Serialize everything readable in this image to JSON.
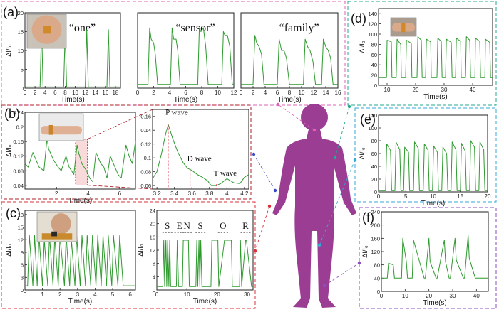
{
  "colors": {
    "trace": "#2e9a2e",
    "body": "#9b3d93",
    "frame_a": "#e060b8",
    "frame_b": "#b0222a",
    "frame_c": "#d8323a",
    "frame_d": "#25a88f",
    "frame_e": "#35a9d8",
    "frame_f": "#8a4fc0",
    "ecg_highlight": "#e05060",
    "axis": "#222222"
  },
  "panels": [
    {
      "id": "a",
      "label": "(a)",
      "icon": "neck-photo-icon"
    },
    {
      "id": "b",
      "label": "(b)",
      "icon": "wrist-photo-icon"
    },
    {
      "id": "c",
      "label": "(c)",
      "icon": "finger-photo-icon"
    },
    {
      "id": "d",
      "label": "(d)",
      "icon": "elbow-photo-icon"
    },
    {
      "id": "e",
      "label": "(e)",
      "icon": ""
    },
    {
      "id": "f",
      "label": "(f)",
      "icon": ""
    }
  ],
  "chart_data": [
    {
      "name": "a-one",
      "type": "line",
      "title": "“one”",
      "xlabel": "Time(s)",
      "ylabel": "ΔI/I₀",
      "xlim": [
        0,
        19
      ],
      "ylim": [
        0,
        20
      ],
      "xticks": [
        0,
        2,
        4,
        6,
        8,
        10,
        12,
        14,
        16,
        18
      ],
      "yticks": [
        0,
        5,
        10,
        15,
        20
      ],
      "x": [
        0,
        3.0,
        3.3,
        3.6,
        7.7,
        8.0,
        8.3,
        12.0,
        12.3,
        12.6,
        16.3,
        16.6,
        16.9,
        19
      ],
      "y": [
        0.3,
        0.3,
        16.5,
        0.3,
        0.3,
        15,
        0.3,
        0.3,
        15.5,
        0.3,
        0.3,
        15.5,
        0.3,
        0.3
      ]
    },
    {
      "name": "a-sensor",
      "type": "line",
      "title": "“sensor”",
      "xlabel": "Time(s)",
      "ylabel": "",
      "xlim": [
        0,
        12
      ],
      "ylim": [
        0,
        20
      ],
      "xticks": [
        0,
        2,
        4,
        6,
        8,
        10,
        12
      ],
      "yticks": [],
      "x": [
        0,
        1.3,
        1.5,
        1.7,
        2.0,
        2.2,
        2.5,
        4.1,
        4.3,
        4.5,
        4.8,
        5.0,
        5.3,
        7.5,
        7.7,
        7.9,
        8.2,
        8.5,
        8.8,
        10.5,
        10.7,
        10.9,
        11.2,
        11.5,
        11.8,
        12
      ],
      "y": [
        1,
        1,
        16,
        13,
        12,
        9,
        1,
        1,
        16,
        13,
        13,
        10,
        1,
        1,
        16,
        15,
        16,
        11,
        1,
        1,
        15,
        14,
        14,
        11,
        1,
        1
      ]
    },
    {
      "name": "a-family",
      "type": "line",
      "title": "“family”",
      "xlabel": "Time(s)",
      "ylabel": "",
      "xlim": [
        0,
        16
      ],
      "ylim": [
        0,
        20
      ],
      "xticks": [
        0,
        2,
        4,
        6,
        8,
        10,
        12,
        14,
        16
      ],
      "yticks": [],
      "x": [
        0,
        2.0,
        2.3,
        2.6,
        3.0,
        3.4,
        3.8,
        6.0,
        6.3,
        6.7,
        7.1,
        7.5,
        8.0,
        10.3,
        10.6,
        11.0,
        11.4,
        11.9,
        12.3,
        13.3,
        13.6,
        14.0,
        14.4,
        14.8,
        15.2,
        16
      ],
      "y": [
        1,
        1,
        14,
        12,
        11,
        9,
        1,
        1,
        13,
        10,
        10,
        8,
        1,
        1,
        13,
        11,
        10,
        7,
        1,
        1,
        13,
        11,
        10,
        8,
        1,
        1
      ]
    },
    {
      "name": "b-pulse",
      "type": "line",
      "title": "",
      "xlabel": "Time(s)",
      "ylabel": "ΔI/I₀",
      "xlim": [
        0,
        7
      ],
      "ylim": [
        0.03,
        0.24
      ],
      "xticks": [
        2,
        4,
        6
      ],
      "yticks": [
        0.04,
        0.08,
        0.12,
        0.16,
        0.2,
        0.24
      ],
      "highlight_x": [
        3.2,
        3.95
      ],
      "x": [
        0,
        0.2,
        0.5,
        0.7,
        0.9,
        1.2,
        1.4,
        1.5,
        1.8,
        2.1,
        2.3,
        2.6,
        2.8,
        3.1,
        3.3,
        3.4,
        3.6,
        3.9,
        4.1,
        4.3,
        4.5,
        4.8,
        5.0,
        5.2,
        5.4,
        5.7,
        5.9,
        6.1,
        6.4,
        6.6,
        6.8,
        7.0
      ],
      "y": [
        0.1,
        0.09,
        0.13,
        0.11,
        0.09,
        0.08,
        0.17,
        0.14,
        0.11,
        0.09,
        0.08,
        0.12,
        0.09,
        0.07,
        0.15,
        0.13,
        0.1,
        0.08,
        0.06,
        0.05,
        0.13,
        0.1,
        0.09,
        0.06,
        0.12,
        0.09,
        0.07,
        0.06,
        0.15,
        0.12,
        0.1,
        0.16
      ]
    },
    {
      "name": "b-ecg",
      "type": "line",
      "title": "",
      "xlabel": "",
      "ylabel": "",
      "xlim": [
        3.15,
        4.25
      ],
      "ylim": [
        0.055,
        0.17
      ],
      "xticks": [
        3.2,
        3.4,
        3.6,
        3.8,
        4.0,
        4.2
      ],
      "yticks": [
        0.06,
        0.08,
        0.1,
        0.12,
        0.14,
        0.16
      ],
      "x": [
        3.15,
        3.2,
        3.25,
        3.3,
        3.33,
        3.38,
        3.44,
        3.5,
        3.55,
        3.6,
        3.66,
        3.72,
        3.78,
        3.82,
        3.88,
        3.93,
        4.0,
        4.08,
        4.15,
        4.2,
        4.25
      ],
      "y": [
        0.07,
        0.08,
        0.105,
        0.135,
        0.148,
        0.128,
        0.108,
        0.093,
        0.085,
        0.082,
        0.076,
        0.072,
        0.067,
        0.06,
        0.06,
        0.063,
        0.07,
        0.064,
        0.063,
        0.072,
        0.076
      ],
      "annotations": [
        {
          "text": "P wave",
          "x": 3.33,
          "y": 0.148
        },
        {
          "text": "D wave",
          "x": 3.58,
          "y": 0.083
        },
        {
          "text": "T wave",
          "x": 3.88,
          "y": 0.062
        }
      ]
    },
    {
      "name": "c-taps",
      "type": "line",
      "title": "",
      "xlabel": "Time(s)",
      "ylabel": "ΔI/I₀",
      "xlim": [
        0,
        6.3
      ],
      "ylim": [
        0,
        19
      ],
      "xticks": [
        0,
        1,
        2,
        3,
        4,
        5,
        6
      ],
      "yticks": [
        0,
        3,
        6,
        9,
        12,
        15,
        18
      ],
      "x": [
        0,
        0.15,
        0.25,
        0.45,
        0.55,
        0.7,
        0.8,
        1.0,
        1.1,
        1.3,
        1.4,
        1.6,
        1.7,
        1.9,
        2.0,
        2.25,
        2.35,
        2.55,
        2.65,
        2.85,
        2.95,
        3.15,
        3.25,
        3.45,
        3.55,
        3.75,
        3.85,
        4.05,
        4.15,
        4.35,
        4.45,
        4.65,
        4.75,
        4.95,
        5.05,
        5.3,
        5.4,
        5.6,
        5.7,
        6.3
      ],
      "y": [
        1,
        1,
        13,
        1,
        13,
        1,
        13,
        1,
        12,
        1,
        13,
        1,
        13,
        1,
        13,
        1,
        13,
        1,
        12,
        1,
        13,
        1,
        13,
        1,
        13,
        1,
        13,
        1,
        13,
        1,
        13,
        1,
        13,
        1,
        13,
        1,
        13,
        1,
        1,
        1
      ]
    },
    {
      "name": "c-morse",
      "type": "line",
      "title": "",
      "xlabel": "Time(s)",
      "ylabel": "ΔI/I₀",
      "xlim": [
        0,
        32
      ],
      "ylim": [
        0,
        24
      ],
      "xticks": [
        0,
        10,
        20,
        30
      ],
      "yticks": [
        0,
        4,
        8,
        12,
        16,
        20,
        24
      ],
      "letters": [
        "S",
        "E",
        "N",
        "S",
        "O",
        "R"
      ],
      "letter_x": [
        3.5,
        7.5,
        10,
        14.5,
        22,
        29.5
      ],
      "x": [
        0,
        2.0,
        2.3,
        2.6,
        3.0,
        3.3,
        3.6,
        4.0,
        4.3,
        4.6,
        6.5,
        6.8,
        7.2,
        8.5,
        8.8,
        10.5,
        10.8,
        11.2,
        13.0,
        13.3,
        13.6,
        14.0,
        14.3,
        14.6,
        15.0,
        15.3,
        15.6,
        18.0,
        18.3,
        20.3,
        20.6,
        22.5,
        22.8,
        24.8,
        25.1,
        27.5,
        27.8,
        28.2,
        29.5,
        29.8,
        31.5,
        31.8,
        32
      ],
      "y": [
        1,
        1,
        15,
        1,
        15,
        1,
        15,
        1,
        15,
        1,
        1,
        15,
        1,
        1,
        15,
        15,
        1,
        1,
        1,
        15,
        1,
        15,
        1,
        15,
        1,
        1,
        1,
        1,
        15,
        15,
        1,
        15,
        15,
        15,
        1,
        1,
        15,
        1,
        15,
        15,
        1,
        1,
        1
      ]
    },
    {
      "name": "d-elbow",
      "type": "line",
      "title": "",
      "xlabel": "Time(s)",
      "ylabel": "ΔI/I₀",
      "xlim": [
        7,
        47
      ],
      "ylim": [
        0,
        150
      ],
      "xticks": [
        10,
        20,
        30,
        40
      ],
      "yticks": [
        0,
        20,
        40,
        60,
        80,
        100,
        120,
        140
      ],
      "x": [
        7,
        9.8,
        10.0,
        11.5,
        11.7,
        13.2,
        13.5,
        14.8,
        15.0,
        16.5,
        16.8,
        18.5,
        18.7,
        20.5,
        20.8,
        22.0,
        22.3,
        23.5,
        23.8,
        25.3,
        25.5,
        27.5,
        27.8,
        29.0,
        29.3,
        30.5,
        30.8,
        32.5,
        32.8,
        34.0,
        34.3,
        35.8,
        36.0,
        37.5,
        37.8,
        39.0,
        39.3,
        40.8,
        41.0,
        42.5,
        42.8,
        44.3,
        44.5,
        46.0,
        46.3,
        47
      ],
      "y": [
        15,
        15,
        88,
        85,
        15,
        15,
        90,
        80,
        15,
        15,
        88,
        82,
        15,
        15,
        95,
        88,
        15,
        15,
        90,
        85,
        15,
        15,
        92,
        86,
        15,
        15,
        90,
        84,
        15,
        15,
        92,
        86,
        15,
        15,
        95,
        88,
        15,
        15,
        92,
        86,
        15,
        15,
        90,
        84,
        15,
        15
      ]
    },
    {
      "name": "e-knee",
      "type": "line",
      "title": "",
      "xlabel": "Time(s)",
      "ylabel": "ΔI/I₀",
      "xlim": [
        0,
        20
      ],
      "ylim": [
        0,
        120
      ],
      "xticks": [
        0,
        5,
        10,
        15,
        20
      ],
      "yticks": [
        0,
        20,
        40,
        60,
        80,
        100,
        120
      ],
      "x": [
        0,
        1.3,
        1.5,
        2.2,
        2.4,
        3.0,
        3.2,
        3.9,
        4.1,
        4.6,
        4.8,
        5.5,
        5.7,
        6.4,
        6.6,
        7.3,
        7.5,
        8.2,
        8.4,
        9.1,
        9.3,
        9.9,
        10.1,
        10.8,
        11.0,
        11.6,
        11.8,
        12.5,
        12.7,
        13.3,
        13.5,
        14.2,
        14.4,
        15.0,
        15.2,
        15.9,
        16.1,
        16.7,
        16.9,
        17.6,
        17.8,
        18.4,
        18.6,
        19.3,
        19.5,
        20
      ],
      "y": [
        2,
        2,
        75,
        65,
        2,
        2,
        78,
        66,
        2,
        2,
        70,
        62,
        2,
        2,
        78,
        68,
        2,
        2,
        75,
        65,
        2,
        2,
        72,
        62,
        2,
        2,
        70,
        60,
        2,
        2,
        78,
        66,
        2,
        2,
        76,
        64,
        2,
        2,
        80,
        70,
        2,
        2,
        78,
        66,
        2,
        2
      ]
    },
    {
      "name": "f-ankle",
      "type": "line",
      "title": "",
      "xlabel": "Time(s)",
      "ylabel": "ΔI/I₀",
      "xlim": [
        0,
        45
      ],
      "ylim": [
        0,
        240
      ],
      "xticks": [
        0,
        10,
        20,
        30,
        40
      ],
      "yticks": [
        0,
        40,
        80,
        120,
        160,
        200,
        240
      ],
      "x": [
        0,
        2.5,
        3.0,
        5.0,
        5.5,
        8.5,
        9.0,
        10.5,
        11.0,
        13.0,
        13.5,
        18.0,
        18.5,
        20.0,
        20.5,
        23.0,
        23.5,
        26.5,
        27.0,
        28.5,
        29.0,
        31.0,
        31.5,
        34.5,
        35.0,
        36.5,
        37.0,
        39.5,
        40.0,
        45
      ],
      "y": [
        40,
        40,
        85,
        80,
        40,
        40,
        160,
        90,
        40,
        40,
        155,
        40,
        40,
        160,
        90,
        40,
        40,
        155,
        90,
        40,
        40,
        160,
        95,
        40,
        40,
        170,
        100,
        40,
        40,
        40
      ]
    }
  ]
}
